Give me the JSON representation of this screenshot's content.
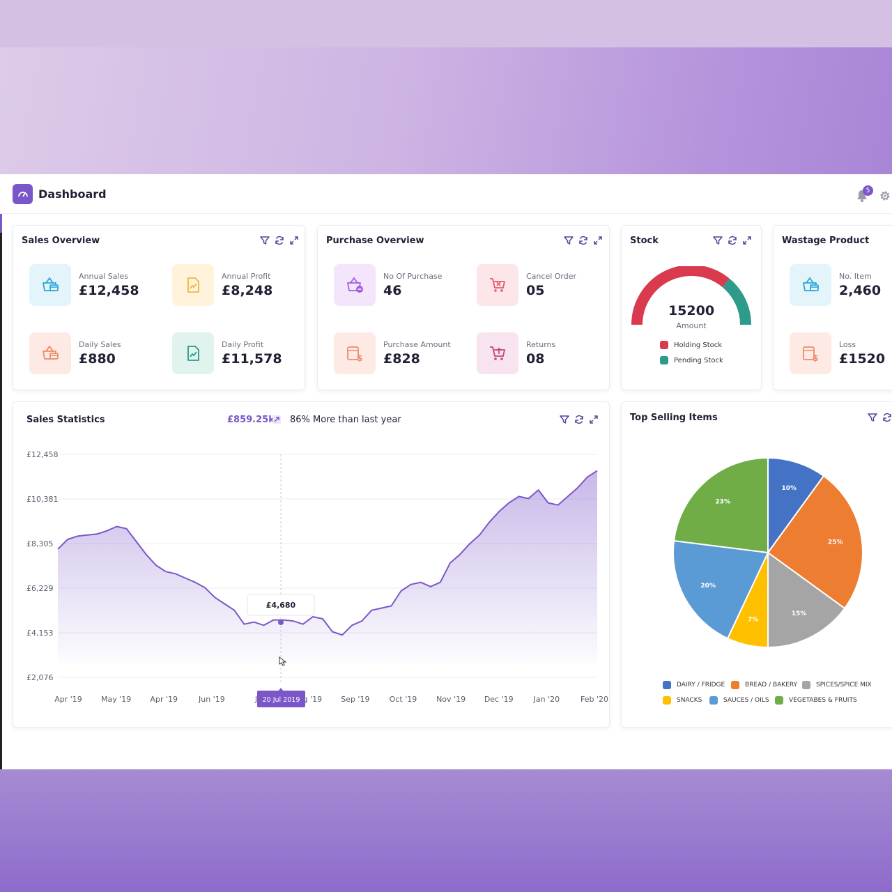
{
  "header": {
    "title": "Dashboard",
    "notification_count": "5"
  },
  "sales_overview": {
    "title": "Sales Overview",
    "items": [
      {
        "label": "Annual Sales",
        "value": "£12,458",
        "icon": "basket-icon",
        "color": "#2aa6d8"
      },
      {
        "label": "Annual Profit",
        "value": "£8,248",
        "icon": "document-chart-icon",
        "color": "#f2b43c"
      },
      {
        "label": "Daily Sales",
        "value": "£880",
        "icon": "basket-icon",
        "color": "#ef8a6b"
      },
      {
        "label": "Daily Profit",
        "value": "£11,578",
        "icon": "document-chart-icon",
        "color": "#2b9a8a"
      }
    ]
  },
  "purchase_overview": {
    "title": "Purchase Overview",
    "items": [
      {
        "label": "No Of Purchase",
        "value": "46",
        "icon": "basket-minus-icon",
        "color": "#a25be0"
      },
      {
        "label": "Cancel Order",
        "value": "05",
        "icon": "cart-cancel-icon",
        "color": "#e65b6d"
      },
      {
        "label": "Purchase Amount",
        "value": "£828",
        "icon": "invoice-dollar-icon",
        "color": "#ef8a6b"
      },
      {
        "label": "Returns",
        "value": "08",
        "icon": "cart-return-icon",
        "color": "#c2457c"
      }
    ]
  },
  "stock": {
    "title": "Stock",
    "amount": "15200",
    "amount_label": "Amount",
    "holding_fraction": 0.72,
    "legend": [
      {
        "label": "Holding Stock",
        "color": "#d93a4e"
      },
      {
        "label": "Pending Stock",
        "color": "#2e9a8a"
      }
    ]
  },
  "wastage": {
    "title": "Wastage Product",
    "items": [
      {
        "label": "No. Item",
        "value": "2,460",
        "icon": "basket-icon",
        "color": "#2aa6d8"
      },
      {
        "label": "Loss",
        "value": "£1520",
        "icon": "invoice-dollar-icon",
        "color": "#ef8a6b"
      }
    ]
  },
  "sales_statistics": {
    "title": "Sales Statistics",
    "total": "£859.25k",
    "comparison": "86% More than last year",
    "tooltip_value": "£4,680",
    "tooltip_date": "20 Jul 2019"
  },
  "top_selling": {
    "title": "Top Selling Items"
  },
  "chart_data": [
    {
      "type": "area",
      "title": "Sales Statistics",
      "y_ticks": [
        "£12,458",
        "£10,381",
        "£8,305",
        "£6,229",
        "£4,153",
        "£2,076"
      ],
      "y_tick_values": [
        12458,
        10381,
        8305,
        6229,
        4153,
        2076
      ],
      "ylim": [
        2076,
        12458
      ],
      "x_ticks": [
        "Apr '19",
        "May '19",
        "Apr '19",
        "Jun '19",
        "Jul",
        "Aug '19",
        "Sep '19",
        "Oct '19",
        "Nov '19",
        "Dec '19",
        "Jan '20",
        "Feb '20"
      ],
      "grid": true,
      "color": "#7b56c9",
      "series": [
        {
          "values": [
            8050,
            8500,
            8650,
            8700,
            8750,
            8900,
            9100,
            9000,
            8400,
            7800,
            7300,
            7000,
            6900,
            6700,
            6500,
            6250,
            5800,
            5500,
            5200,
            4550,
            4650,
            4500,
            4750,
            4750,
            4700,
            4550,
            4900,
            4800,
            4200,
            4050,
            4500,
            4700,
            5200,
            5300,
            5400,
            6100,
            6400,
            6500,
            6300,
            6500,
            7400,
            7800,
            8300,
            8700,
            9300,
            9800,
            10200,
            10500,
            10400,
            10800,
            10200,
            10100,
            10500,
            10900,
            11400,
            11700
          ]
        }
      ]
    },
    {
      "type": "pie",
      "title": "Top Selling Items",
      "labels": [
        "DAIRY / FRIDGE",
        "BREAD / BAKERY",
        "SPICES/SPICE MIX",
        "SNACKS",
        "SAUCES / OILS",
        "VEGETABES & FRUITS"
      ],
      "values": [
        10,
        25,
        15,
        7,
        20,
        23
      ],
      "value_labels": [
        "10%",
        "25%",
        "15%",
        "7%",
        "20%",
        "23%"
      ],
      "colors": [
        "#4472c4",
        "#ed7d31",
        "#a5a5a5",
        "#ffc000",
        "#5b9bd5",
        "#70ad47"
      ],
      "legend_position": "bottom"
    }
  ]
}
